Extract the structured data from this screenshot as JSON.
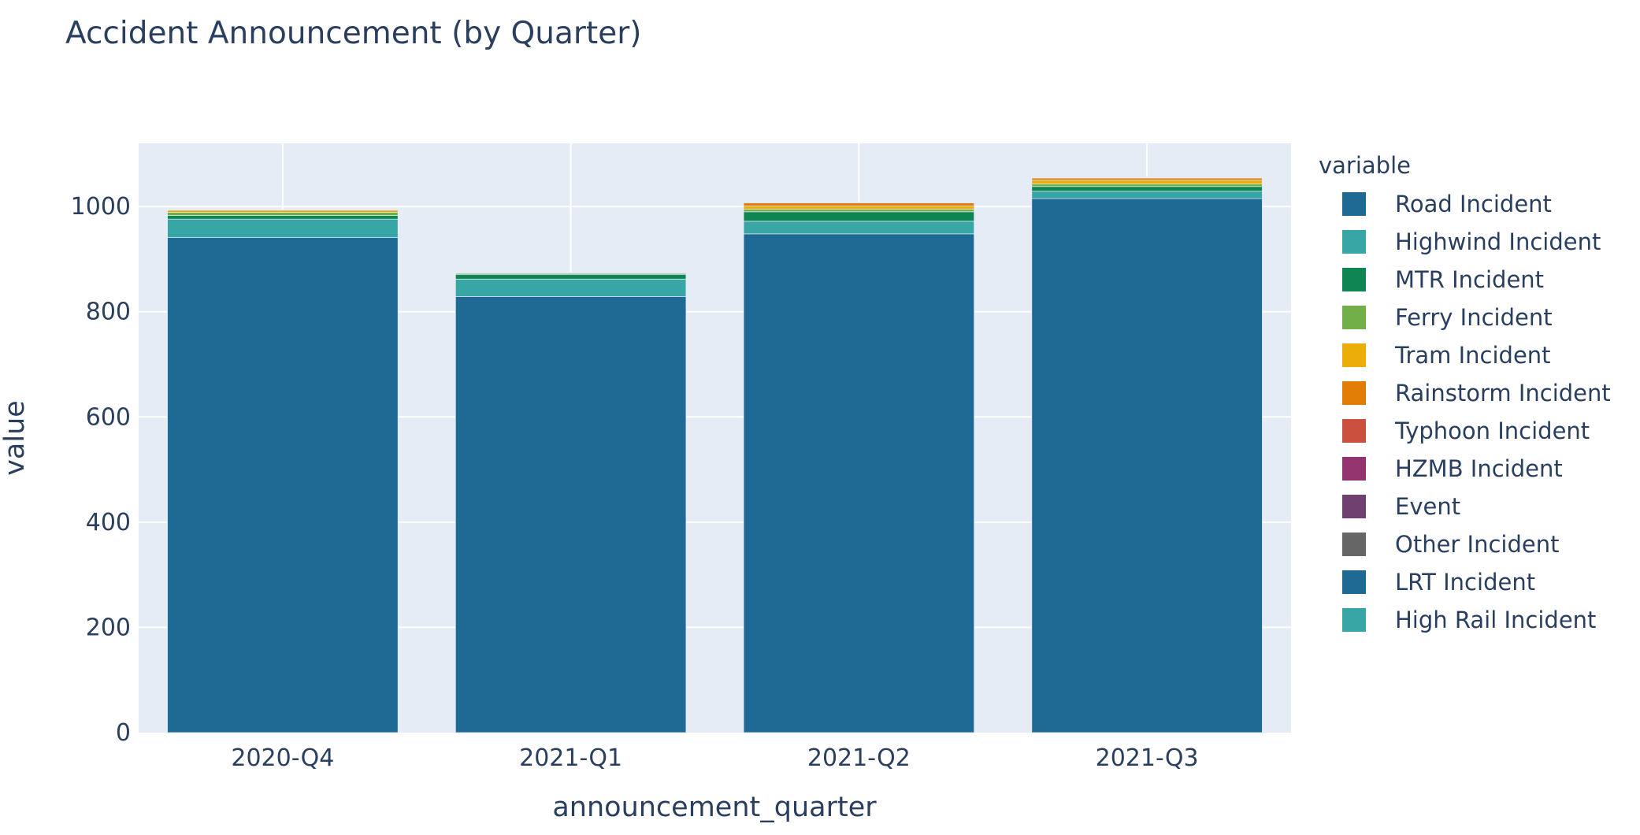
{
  "chart_data": {
    "type": "bar",
    "title": "Accident Announcement (by Quarter)",
    "xlabel": "announcement_quarter",
    "ylabel": "value",
    "ylim": [
      0,
      1120
    ],
    "yticks": [
      0,
      200,
      400,
      600,
      800,
      1000
    ],
    "grid": true,
    "legend_position": "right",
    "legend_title": "variable",
    "categories": [
      "2020-Q4",
      "2021-Q1",
      "2021-Q2",
      "2021-Q3"
    ],
    "series": [
      {
        "name": "Road Incident",
        "color": "#1F6A94",
        "values": [
          941,
          829,
          948,
          1015
        ]
      },
      {
        "name": "Highwind Incident",
        "color": "#38A6A5",
        "values": [
          35,
          33,
          24,
          14
        ]
      },
      {
        "name": "MTR Incident",
        "color": "#0F8554",
        "values": [
          7,
          9,
          18,
          9
        ]
      },
      {
        "name": "Ferry Incident",
        "color": "#73AF48",
        "values": [
          6,
          2,
          5,
          5
        ]
      },
      {
        "name": "Tram Incident",
        "color": "#EDAD08",
        "values": [
          4,
          1,
          6,
          7
        ]
      },
      {
        "name": "Rainstorm Incident",
        "color": "#E17C05",
        "values": [
          0,
          0,
          6,
          4
        ]
      },
      {
        "name": "Typhoon Incident",
        "color": "#CC503E",
        "values": [
          0,
          0,
          1,
          1
        ]
      },
      {
        "name": "HZMB Incident",
        "color": "#94346E",
        "values": [
          0,
          0,
          0,
          0
        ]
      },
      {
        "name": "Event",
        "color": "#6F4070",
        "values": [
          0,
          0,
          0,
          0
        ]
      },
      {
        "name": "Other Incident",
        "color": "#666666",
        "values": [
          0,
          0,
          0,
          0
        ]
      },
      {
        "name": "LRT Incident",
        "color": "#1F6A94",
        "values": [
          1,
          1,
          1,
          1
        ]
      },
      {
        "name": "High Rail Incident",
        "color": "#38A6A5",
        "values": [
          0,
          0,
          0,
          0
        ]
      }
    ]
  }
}
